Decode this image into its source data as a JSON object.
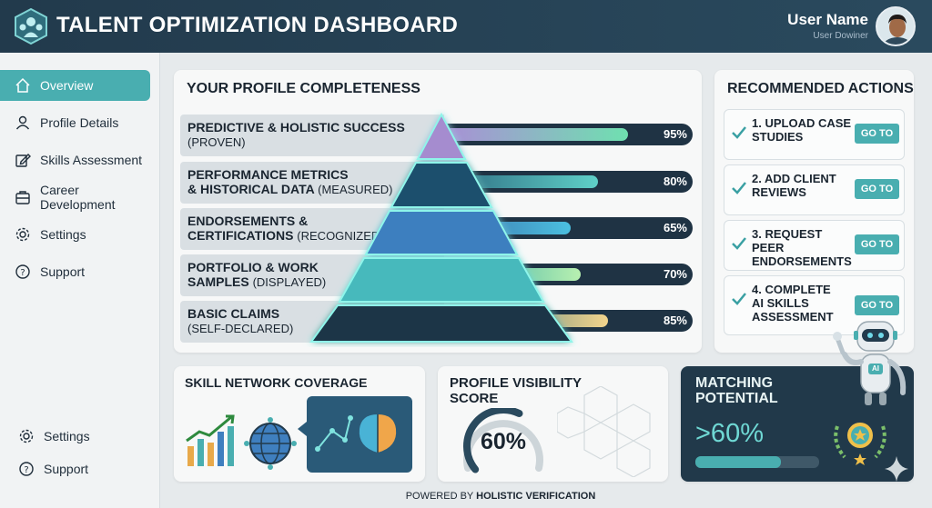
{
  "header": {
    "title": "TALENT OPTIMIZATION DASHBOARD",
    "user_name": "User Name",
    "user_sub": "User Dowiner"
  },
  "sidebar": {
    "items": [
      {
        "label": "Overview",
        "icon": "home-icon",
        "active": true
      },
      {
        "label": "Profile Details",
        "icon": "user-icon"
      },
      {
        "label": "Skills Assessment",
        "icon": "edit-icon"
      },
      {
        "label": "Career Development",
        "icon": "briefcase-icon"
      },
      {
        "label": "Settings",
        "icon": "gear-icon"
      },
      {
        "label": "Support",
        "icon": "help-icon"
      }
    ],
    "bottom_items": [
      {
        "label": "Settings",
        "icon": "gear-icon"
      },
      {
        "label": "Support",
        "icon": "help-icon"
      }
    ]
  },
  "profile": {
    "title": "YOUR PROFILE COMPLETENESS",
    "rows": [
      {
        "label": "PREDICTIVE & HOLISTIC SUCCESS",
        "sub": "(PROVEN)",
        "percent": 95,
        "percent_label": "95%"
      },
      {
        "label": "PERFORMANCE METRICS",
        "label2": "& HISTORICAL DATA",
        "sub": "(MEASURED)",
        "percent": 80,
        "percent_label": "80%"
      },
      {
        "label": "ENDORSEMENTS &",
        "label2": "CERTIFICATIONS",
        "sub": "(RECOGNIZED)",
        "percent": 65,
        "percent_label": "65%"
      },
      {
        "label": "PORTFOLIO & WORK",
        "label2": "SAMPLES",
        "sub": "(DISPLAYED)",
        "percent": 70,
        "percent_label": "70%"
      },
      {
        "label": "BASIC CLAIMS",
        "sub": "(SELF-DECLARED)",
        "percent": 85,
        "percent_label": "85%"
      }
    ]
  },
  "actions": {
    "title": "RECOMMENDED ACTIONS",
    "button_label": "GO TO",
    "items": [
      {
        "text": "1. UPLOAD CASE STUDIES"
      },
      {
        "text": "2. ADD CLIENT REVIEWS"
      },
      {
        "text": "3. REQUEST PEER ENDORSEMENTS"
      },
      {
        "text": "4. COMPLETE AI SKILLS ASSESSMENT"
      }
    ]
  },
  "skill_network": {
    "title": "SKILL NETWORK COVERAGE"
  },
  "visibility": {
    "title": "PROFILE VISIBILITY SCORE",
    "value": 60,
    "value_label": "60%"
  },
  "matching": {
    "title": "MATCHING POTENTIAL",
    "value_label": ">60%",
    "fill": 0.6,
    "robot_badge": "AI"
  },
  "footer": {
    "prefix": "POWERED BY ",
    "strong": "HOLISTIC VERIFICATION"
  },
  "colors": {
    "accent": "#49aeb0",
    "header": "#223a4c",
    "dark_card": "#21394a"
  }
}
